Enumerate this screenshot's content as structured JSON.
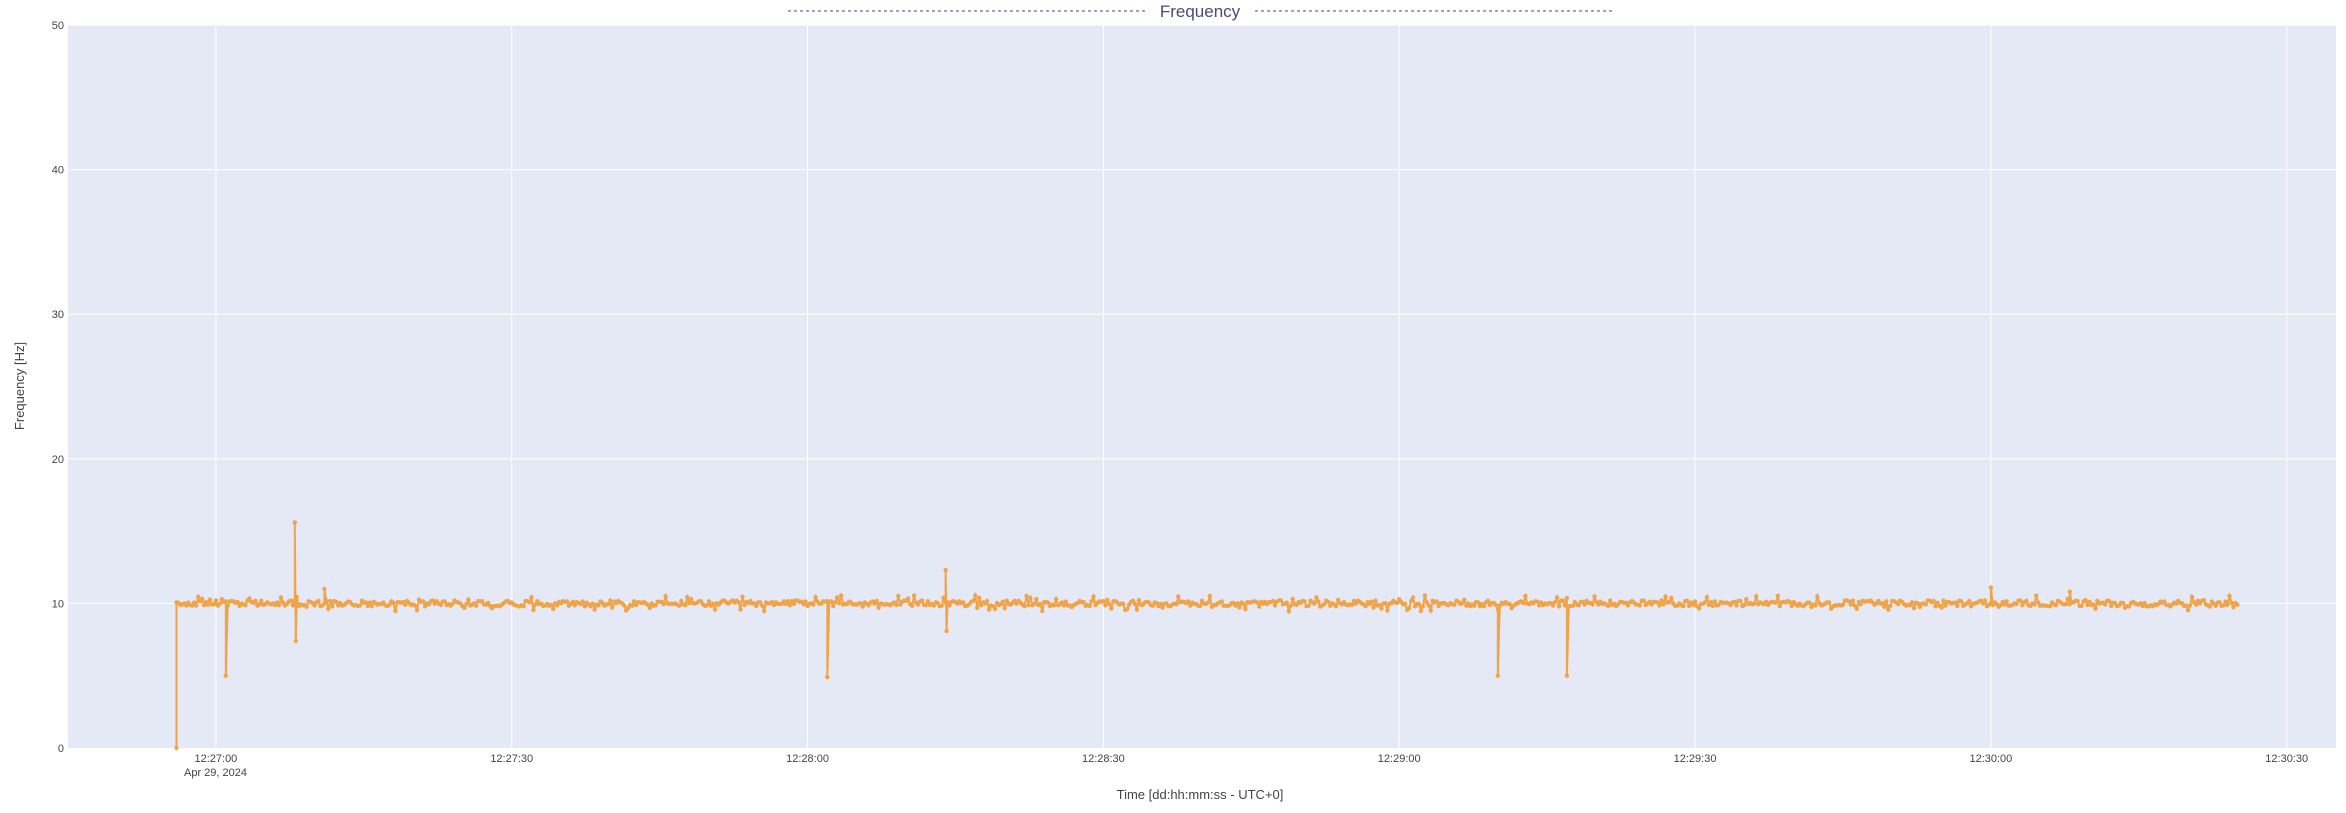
{
  "chart_data": {
    "type": "line",
    "title": "Frequency",
    "xlabel": "Time [dd:hh:mm:ss - UTC+0]",
    "ylabel": "Frequency [Hz]",
    "date_label": "Apr 29, 2024",
    "x_tick_labels": [
      "12:27:00",
      "12:27:30",
      "12:28:00",
      "12:28:30",
      "12:29:00",
      "12:29:30",
      "12:30:00",
      "12:30:30"
    ],
    "y_tick_labels": [
      "0",
      "10",
      "20",
      "30",
      "40",
      "50"
    ],
    "xlim": [
      "12:26:45",
      "12:30:35"
    ],
    "ylim": [
      0,
      50
    ],
    "grid": true,
    "series": [
      {
        "color": "#f0a44a",
        "markers": true,
        "baseline": 10.0,
        "x_range": [
          "12:26:56",
          "12:30:25"
        ],
        "notable_points": [
          {
            "x": "12:26:56",
            "y": 0.0
          },
          {
            "x": "12:27:00",
            "y": 10.2
          },
          {
            "x": "12:27:01",
            "y": 5.0
          },
          {
            "x": "12:27:08",
            "y": 15.6
          },
          {
            "x": "12:27:08.1",
            "y": 7.4
          },
          {
            "x": "12:27:11",
            "y": 11.0
          },
          {
            "x": "12:28:02",
            "y": 4.9
          },
          {
            "x": "12:28:14",
            "y": 12.3
          },
          {
            "x": "12:28:14.1",
            "y": 8.1
          },
          {
            "x": "12:29:10",
            "y": 5.0
          },
          {
            "x": "12:29:17",
            "y": 5.0
          },
          {
            "x": "12:30:00",
            "y": 11.1
          },
          {
            "x": "12:30:08",
            "y": 10.8
          }
        ]
      }
    ]
  }
}
